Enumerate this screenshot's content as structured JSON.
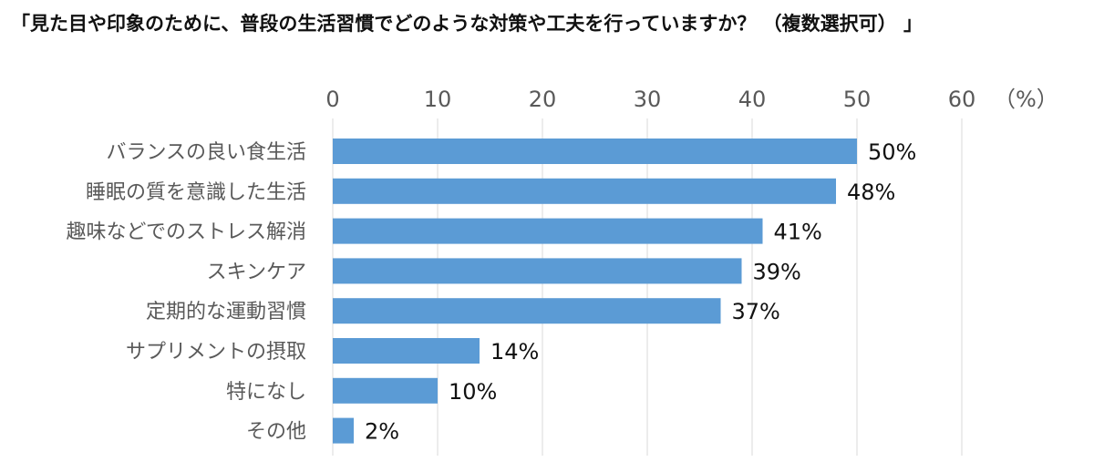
{
  "chart_data": {
    "type": "bar",
    "orientation": "horizontal",
    "title": "「見た目や印象のために、普段の生活習慣でどのような対策や工夫を行っていますか？ （複数選択可） 」",
    "unit_label": "（%）",
    "xlim": [
      0,
      60
    ],
    "ticks": [
      0,
      10,
      20,
      30,
      40,
      50,
      60
    ],
    "tick_labels": [
      "0",
      "10",
      "20",
      "30",
      "40",
      "50",
      "60"
    ],
    "grid": true,
    "axis_position": "top",
    "categories": [
      "バランスの良い食生活",
      "睡眠の質を意識した生活",
      "趣味などでのストレス解消",
      "スキンケア",
      "定期的な運動習慣",
      "サプリメントの摂取",
      "特になし",
      "その他"
    ],
    "values": [
      50,
      48,
      41,
      39,
      37,
      14,
      10,
      2
    ],
    "data_labels": [
      "50%",
      "48%",
      "41%",
      "39%",
      "37%",
      "14%",
      "10%",
      "2%"
    ],
    "bar_color": "#5b9bd5"
  }
}
